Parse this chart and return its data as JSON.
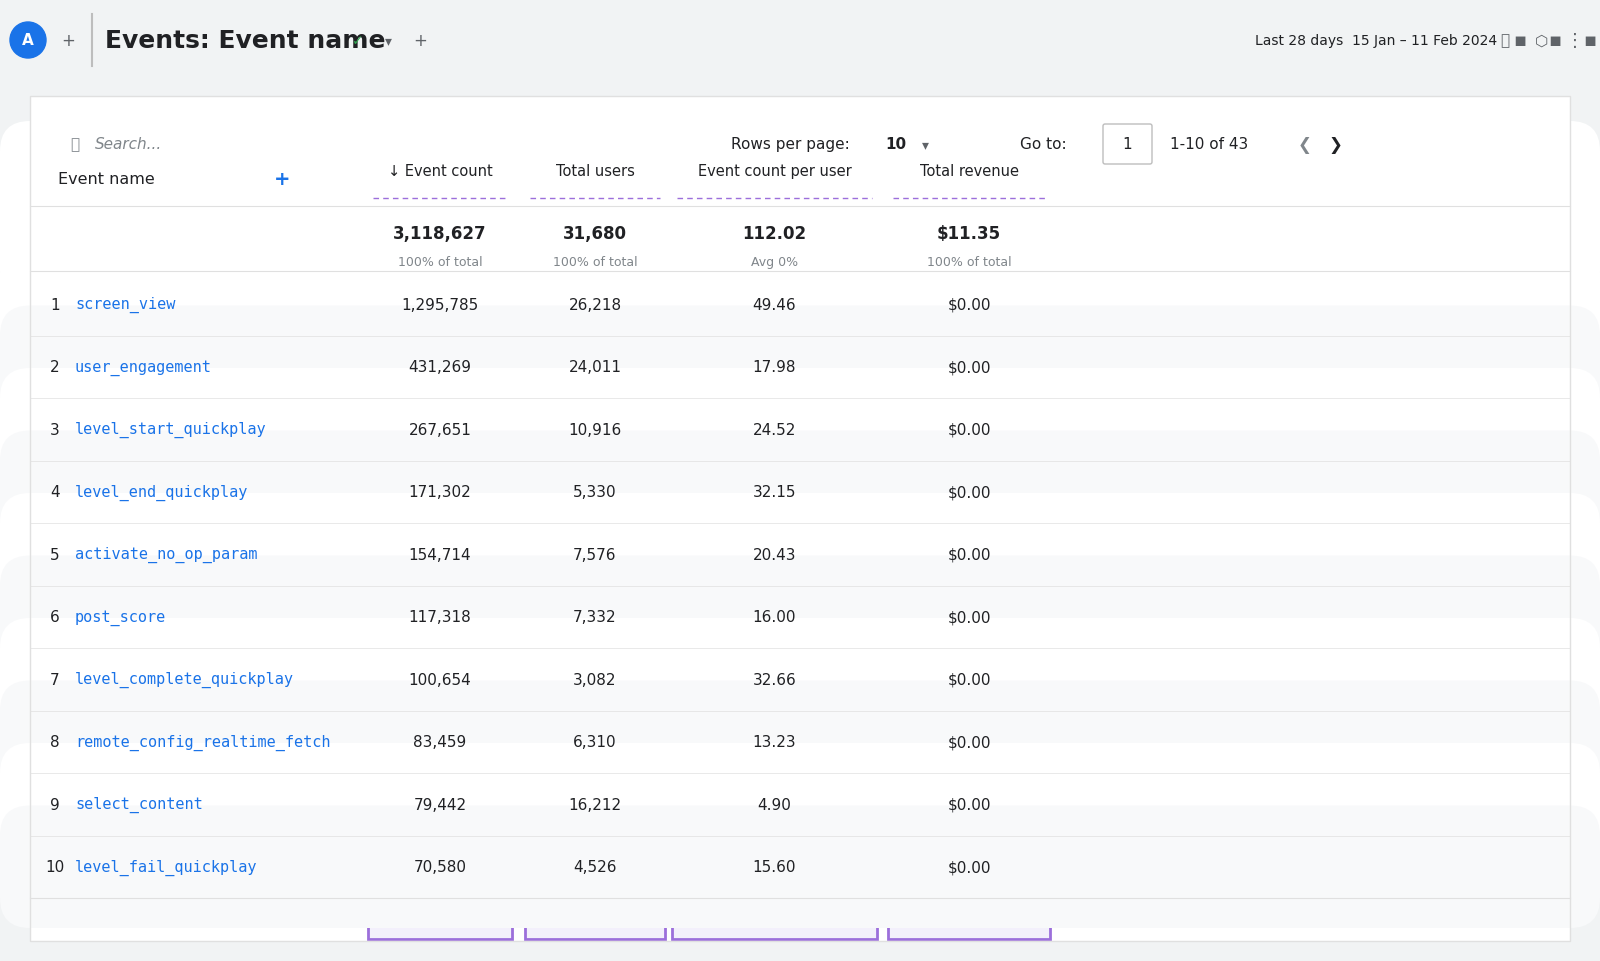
{
  "title": "Events: Event name",
  "date_range": "Last 28 days  15 Jan – 11 Feb 2024",
  "search_placeholder": "Search...",
  "rows_per_page": "Rows per page:    10",
  "pagination": "1-10 of 43",
  "go_to": "Go to:    1",
  "col_headers": [
    "↓ Event count",
    "Total users",
    "Event count per user",
    "Total revenue"
  ],
  "col_totals": [
    "3,118,627",
    "31,680",
    "112.02",
    "$11.35"
  ],
  "col_subtotals": [
    "100% of total",
    "100% of total",
    "Avg 0%",
    "100% of total"
  ],
  "rows": [
    {
      "rank": 1,
      "name": "screen_view",
      "event_count": "1,295,785",
      "total_users": "26,218",
      "per_user": "49.46",
      "revenue": "$0.00"
    },
    {
      "rank": 2,
      "name": "user_engagement",
      "event_count": "431,269",
      "total_users": "24,011",
      "per_user": "17.98",
      "revenue": "$0.00"
    },
    {
      "rank": 3,
      "name": "level_start_quickplay",
      "event_count": "267,651",
      "total_users": "10,916",
      "per_user": "24.52",
      "revenue": "$0.00"
    },
    {
      "rank": 4,
      "name": "level_end_quickplay",
      "event_count": "171,302",
      "total_users": "5,330",
      "per_user": "32.15",
      "revenue": "$0.00"
    },
    {
      "rank": 5,
      "name": "activate_no_op_param",
      "event_count": "154,714",
      "total_users": "7,576",
      "per_user": "20.43",
      "revenue": "$0.00"
    },
    {
      "rank": 6,
      "name": "post_score",
      "event_count": "117,318",
      "total_users": "7,332",
      "per_user": "16.00",
      "revenue": "$0.00"
    },
    {
      "rank": 7,
      "name": "level_complete_quickplay",
      "event_count": "100,654",
      "total_users": "3,082",
      "per_user": "32.66",
      "revenue": "$0.00"
    },
    {
      "rank": 8,
      "name": "remote_config_realtime_fetch",
      "event_count": "83,459",
      "total_users": "6,310",
      "per_user": "13.23",
      "revenue": "$0.00"
    },
    {
      "rank": 9,
      "name": "select_content",
      "event_count": "79,442",
      "total_users": "16,212",
      "per_user": "4.90",
      "revenue": "$0.00"
    },
    {
      "rank": 10,
      "name": "level_fail_quickplay",
      "event_count": "70,580",
      "total_users": "4,526",
      "per_user": "15.60",
      "revenue": "$0.00"
    }
  ],
  "bg_color": "#ffffff",
  "header_bg": "#f8f9fa",
  "highlight_color": "#9c6fdb",
  "highlight_bg": "#f3f0fb",
  "row_alt_color": "#f8f9fa",
  "row_color": "#ffffff",
  "text_color": "#202124",
  "link_color": "#1a73e8",
  "gray_text": "#80868b",
  "border_color": "#e0e0e0",
  "toolbar_bg": "#f1f3f4"
}
